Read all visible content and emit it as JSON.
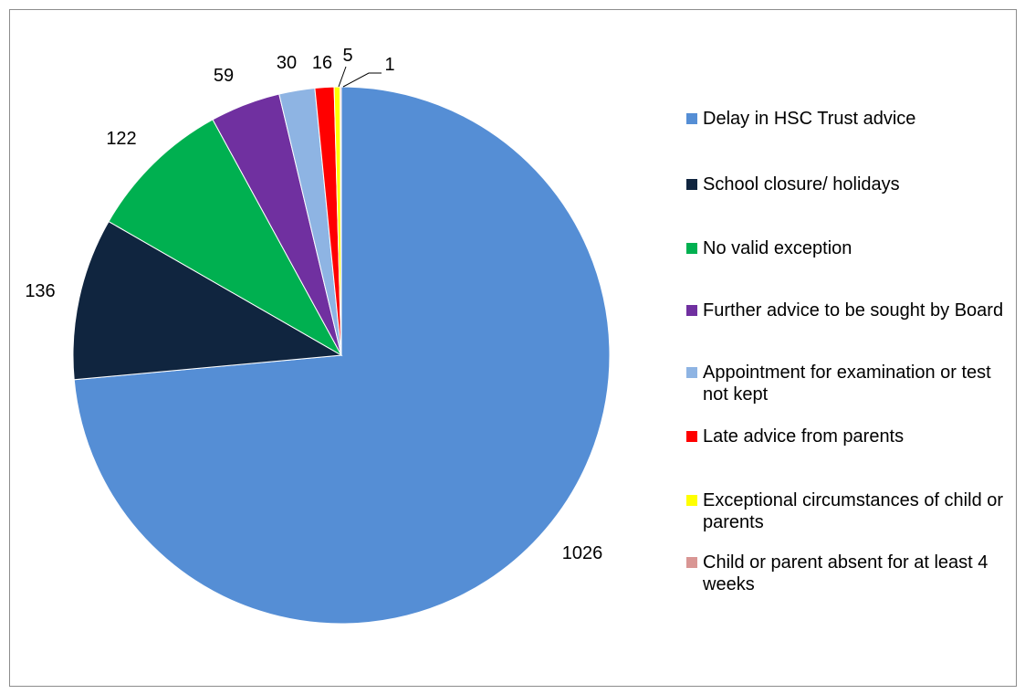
{
  "chart_data": {
    "type": "pie",
    "categories": [
      "Delay in HSC Trust advice",
      "School closure/ holidays",
      "No valid exception",
      "Further advice to be sought by Board",
      "Appointment for examination or test not kept",
      "Late advice from parents",
      "Exceptional circumstances of child or parents",
      "Child or parent absent for at least 4 weeks"
    ],
    "values": [
      1026,
      136,
      122,
      59,
      30,
      16,
      5,
      1
    ],
    "colors": [
      "#558ED5",
      "#10253F",
      "#00B050",
      "#7030A0",
      "#8EB4E3",
      "#FF0000",
      "#FFFF00",
      "#D99694"
    ],
    "data_labels": [
      "1026",
      "136",
      "122",
      "59",
      "30",
      "16",
      "5",
      "1"
    ],
    "legend_position": "right",
    "start_angle_deg": 0,
    "direction": "clockwise"
  }
}
